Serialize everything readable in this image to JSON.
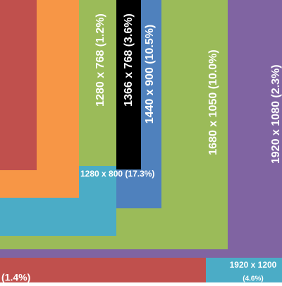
{
  "labels": {
    "r1280x768": "1280 x 768 (1.2%)",
    "r1366x768": "1366 x 768 (3.6%)",
    "r1440x900": "1440 x 900 (10.5%)",
    "r1680x1050": "1680 x 1050 (10.0%)",
    "r1920x1080": "1920 x 1080 (2.3%)",
    "r1280x800": "1280 x 800 (17.3%)",
    "bottom_left": "(1.4%)",
    "r1920x1200": "1920 x 1200",
    "r1920x1200_share": "(4.6%)"
  }
}
